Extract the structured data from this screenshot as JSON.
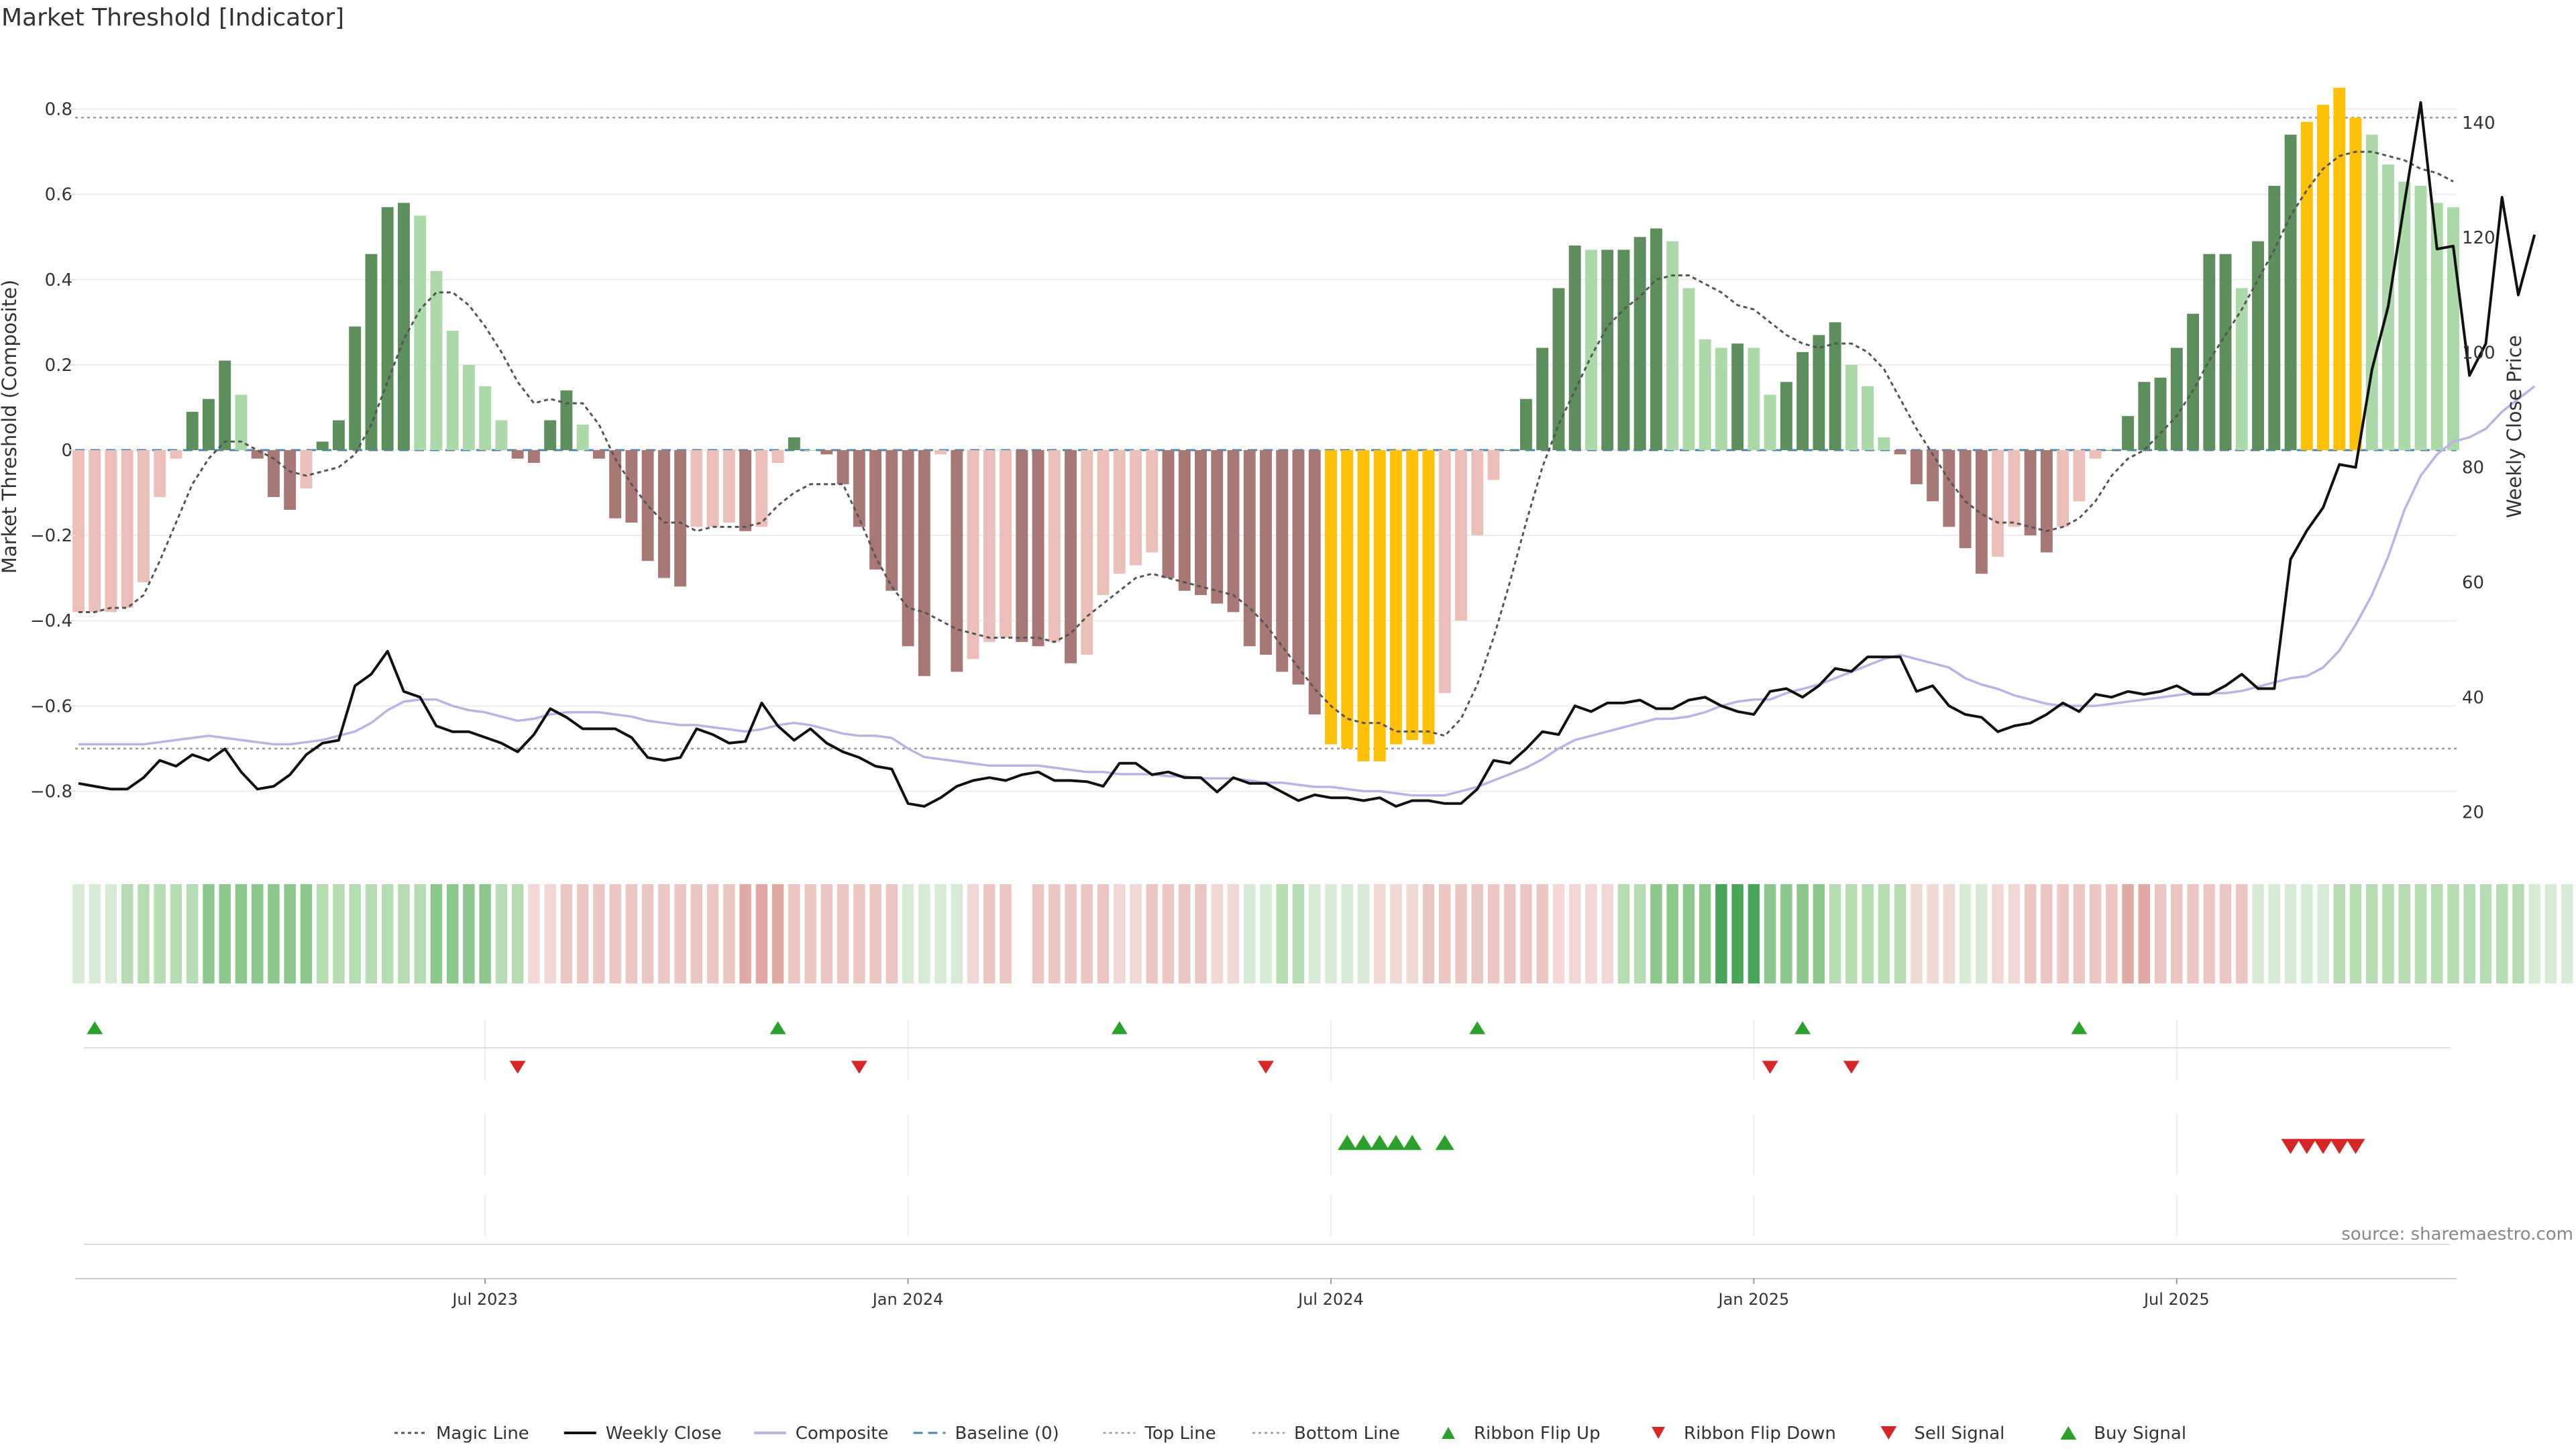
{
  "title": "Market Threshold [Indicator]",
  "source": "source: sharemaestro.com",
  "legend": {
    "placement": "bottom-center",
    "items": [
      {
        "key": "magic",
        "label": "Magic Line"
      },
      {
        "key": "close",
        "label": "Weekly Close"
      },
      {
        "key": "composite",
        "label": "Composite"
      },
      {
        "key": "baseline",
        "label": "Baseline (0)"
      },
      {
        "key": "top",
        "label": "Top Line"
      },
      {
        "key": "bottom",
        "label": "Bottom Line"
      },
      {
        "key": "flipup",
        "label": "Ribbon Flip Up"
      },
      {
        "key": "flipdown",
        "label": "Ribbon Flip Down"
      },
      {
        "key": "sell",
        "label": "Sell Signal"
      },
      {
        "key": "buy",
        "label": "Buy Signal"
      }
    ]
  },
  "colors": {
    "strong_pos": "#5c8f5c",
    "weak_pos": "#acd9a8",
    "strong_neg": "#a87874",
    "weak_neg": "#ecc0b8",
    "extreme": "#ffc107",
    "magic": "#555555",
    "close": "#111111",
    "composite": "#b9b3e6",
    "baseline": "#4a86b8",
    "ribbon_up": "#2ca02c",
    "ribbon_down": "#d62728",
    "buy": "#2ca02c",
    "sell": "#d62728"
  },
  "chart_data": {
    "type": "bar",
    "xaxis": {
      "start": "2023-01-06",
      "interval": "weekly",
      "ticks": [
        {
          "label": "Jul 2023",
          "index": 25
        },
        {
          "label": "Jan 2024",
          "index": 51
        },
        {
          "label": "Jul 2024",
          "index": 77
        },
        {
          "label": "Jan 2025",
          "index": 103
        },
        {
          "label": "Jul 2025",
          "index": 129
        }
      ]
    },
    "y_left": {
      "label": "Market Threshold (Composite)",
      "ylim": [
        -0.93,
        0.93
      ],
      "ticks": [
        -0.8,
        -0.6,
        -0.4,
        -0.2,
        0,
        0.2,
        0.4,
        0.6,
        0.8
      ]
    },
    "y_right": {
      "label": "Weekly Close Price",
      "ylim": [
        14,
        152
      ],
      "ticks": [
        20,
        40,
        60,
        80,
        100,
        120,
        140
      ]
    },
    "top_line": 0.78,
    "bottom_line": -0.7,
    "baseline": 0,
    "grid": true,
    "series": [
      {
        "name": "Market Threshold (Composite)",
        "kind": "bar",
        "values": [
          -0.38,
          -0.38,
          -0.38,
          -0.37,
          -0.31,
          -0.11,
          -0.02,
          0.09,
          0.12,
          0.21,
          0.13,
          -0.02,
          -0.11,
          -0.14,
          -0.09,
          0.02,
          0.07,
          0.29,
          0.46,
          0.57,
          0.58,
          0.55,
          0.42,
          0.28,
          0.2,
          0.15,
          0.07,
          -0.02,
          -0.03,
          0.07,
          0.14,
          0.06,
          -0.02,
          -0.16,
          -0.17,
          -0.26,
          -0.3,
          -0.32,
          -0.18,
          -0.18,
          -0.17,
          -0.19,
          -0.18,
          -0.03,
          0.03,
          0,
          -0.01,
          -0.08,
          -0.18,
          -0.28,
          -0.33,
          -0.46,
          -0.53,
          -0.01,
          -0.52,
          -0.49,
          -0.45,
          -0.44,
          -0.45,
          -0.46,
          -0.45,
          -0.5,
          -0.48,
          -0.34,
          -0.29,
          -0.27,
          -0.24,
          -0.3,
          -0.33,
          -0.34,
          -0.36,
          -0.38,
          -0.46,
          -0.48,
          -0.52,
          -0.55,
          -0.62,
          -0.69,
          -0.7,
          -0.73,
          -0.73,
          -0.69,
          -0.68,
          -0.69,
          -0.57,
          -0.4,
          -0.2,
          -0.07,
          0,
          0.12,
          0.24,
          0.38,
          0.48,
          0.47,
          0.47,
          0.47,
          0.5,
          0.52,
          0.49,
          0.38,
          0.26,
          0.24,
          0.25,
          0.24,
          0.13,
          0.16,
          0.23,
          0.27,
          0.3,
          0.2,
          0.15,
          0.03,
          -0.01,
          -0.08,
          -0.12,
          -0.18,
          -0.23,
          -0.29,
          -0.25,
          -0.18,
          -0.2,
          -0.24,
          -0.18,
          -0.12,
          -0.02,
          0,
          0.08,
          0.16,
          0.17,
          0.24,
          0.32,
          0.46,
          0.46,
          0.38,
          0.49,
          0.62,
          0.74,
          0.77,
          0.81,
          0.85,
          0.78,
          0.74,
          0.67,
          0.63,
          0.62,
          0.58,
          0.57
        ]
      },
      {
        "name": "Magic Line",
        "kind": "line",
        "values": [
          -0.38,
          -0.38,
          -0.37,
          -0.37,
          -0.34,
          -0.26,
          -0.17,
          -0.08,
          -0.02,
          0.02,
          0.02,
          0,
          -0.02,
          -0.05,
          -0.06,
          -0.05,
          -0.04,
          -0.01,
          0.06,
          0.16,
          0.26,
          0.33,
          0.37,
          0.37,
          0.34,
          0.29,
          0.23,
          0.16,
          0.11,
          0.12,
          0.11,
          0.11,
          0.06,
          -0.02,
          -0.08,
          -0.13,
          -0.17,
          -0.17,
          -0.19,
          -0.18,
          -0.18,
          -0.18,
          -0.17,
          -0.13,
          -0.1,
          -0.08,
          -0.08,
          -0.08,
          -0.16,
          -0.25,
          -0.32,
          -0.37,
          -0.38,
          -0.4,
          -0.42,
          -0.43,
          -0.44,
          -0.44,
          -0.44,
          -0.44,
          -0.45,
          -0.43,
          -0.39,
          -0.36,
          -0.33,
          -0.3,
          -0.29,
          -0.3,
          -0.31,
          -0.32,
          -0.33,
          -0.34,
          -0.37,
          -0.41,
          -0.46,
          -0.51,
          -0.56,
          -0.6,
          -0.63,
          -0.64,
          -0.64,
          -0.66,
          -0.66,
          -0.66,
          -0.67,
          -0.63,
          -0.55,
          -0.44,
          -0.31,
          -0.17,
          -0.04,
          0.06,
          0.14,
          0.22,
          0.29,
          0.33,
          0.36,
          0.4,
          0.41,
          0.41,
          0.39,
          0.37,
          0.34,
          0.33,
          0.3,
          0.27,
          0.25,
          0.24,
          0.25,
          0.25,
          0.23,
          0.19,
          0.12,
          0.05,
          -0.01,
          -0.07,
          -0.12,
          -0.15,
          -0.17,
          -0.17,
          -0.18,
          -0.19,
          -0.18,
          -0.16,
          -0.12,
          -0.06,
          -0.02,
          0,
          0.04,
          0.08,
          0.14,
          0.21,
          0.27,
          0.33,
          0.4,
          0.47,
          0.55,
          0.61,
          0.66,
          0.69,
          0.7,
          0.7,
          0.69,
          0.68,
          0.66,
          0.65,
          0.63
        ]
      },
      {
        "name": "Weekly Close",
        "kind": "line",
        "axis": "right",
        "values": [
          25,
          24.5,
          24,
          24,
          26,
          29,
          28,
          30,
          29,
          31,
          27,
          24,
          24.5,
          26.5,
          30,
          32,
          32.5,
          42,
          44,
          48,
          41,
          40,
          35,
          34,
          34,
          33,
          32,
          30.5,
          33.5,
          38,
          36.5,
          34.5,
          34.5,
          34.5,
          33,
          29.5,
          29,
          29.5,
          34.5,
          33.5,
          32,
          32.3,
          39,
          35,
          32.5,
          34.5,
          32,
          30.5,
          29.5,
          28,
          27.5,
          21.5,
          21,
          22.5,
          24.5,
          25.5,
          26,
          25.5,
          26.5,
          27,
          25.5,
          25.5,
          25.3,
          24.5,
          28.5,
          28.5,
          26.5,
          27,
          26,
          26,
          23.5,
          26,
          25,
          25,
          23.5,
          22,
          23,
          22.5,
          22.5,
          22,
          22.5,
          21,
          22,
          22,
          21.5,
          21.5,
          24,
          29,
          28.5,
          31,
          34,
          33.5,
          38.5,
          37.5,
          39,
          39,
          39.5,
          38,
          38,
          39.5,
          40,
          38.5,
          37.5,
          37,
          41,
          41.5,
          40,
          42,
          45,
          44.5,
          47,
          47,
          47,
          41,
          42,
          38.5,
          37,
          36.5,
          34,
          35,
          35.5,
          37,
          39,
          37.5,
          40.5,
          40,
          41,
          40.5,
          41,
          42,
          40.5,
          40.5,
          42,
          44,
          41.5,
          41.5,
          64,
          69,
          73,
          80.5,
          80,
          97,
          108,
          126,
          143.5,
          118,
          118.5,
          96,
          101.5,
          127,
          110,
          120.5
        ]
      },
      {
        "name": "Composite",
        "kind": "line",
        "values": [
          -0.69,
          -0.69,
          -0.69,
          -0.69,
          -0.69,
          -0.685,
          -0.68,
          -0.675,
          -0.67,
          -0.675,
          -0.68,
          -0.685,
          -0.69,
          -0.69,
          -0.685,
          -0.68,
          -0.67,
          -0.66,
          -0.64,
          -0.61,
          -0.59,
          -0.585,
          -0.585,
          -0.6,
          -0.61,
          -0.615,
          -0.625,
          -0.635,
          -0.63,
          -0.62,
          -0.615,
          -0.615,
          -0.615,
          -0.62,
          -0.625,
          -0.635,
          -0.64,
          -0.645,
          -0.645,
          -0.65,
          -0.655,
          -0.66,
          -0.655,
          -0.645,
          -0.64,
          -0.645,
          -0.655,
          -0.665,
          -0.67,
          -0.67,
          -0.675,
          -0.7,
          -0.72,
          -0.725,
          -0.73,
          -0.735,
          -0.74,
          -0.74,
          -0.74,
          -0.74,
          -0.745,
          -0.75,
          -0.755,
          -0.755,
          -0.76,
          -0.76,
          -0.76,
          -0.765,
          -0.765,
          -0.77,
          -0.77,
          -0.77,
          -0.775,
          -0.78,
          -0.78,
          -0.785,
          -0.79,
          -0.79,
          -0.795,
          -0.8,
          -0.8,
          -0.805,
          -0.81,
          -0.81,
          -0.81,
          -0.8,
          -0.79,
          -0.775,
          -0.76,
          -0.745,
          -0.725,
          -0.7,
          -0.68,
          -0.67,
          -0.66,
          -0.65,
          -0.64,
          -0.63,
          -0.63,
          -0.625,
          -0.615,
          -0.6,
          -0.59,
          -0.585,
          -0.585,
          -0.57,
          -0.56,
          -0.55,
          -0.535,
          -0.52,
          -0.505,
          -0.49,
          -0.48,
          -0.49,
          -0.5,
          -0.51,
          -0.535,
          -0.55,
          -0.56,
          -0.575,
          -0.585,
          -0.595,
          -0.6,
          -0.6,
          -0.6,
          -0.595,
          -0.59,
          -0.585,
          -0.58,
          -0.575,
          -0.57,
          -0.57,
          -0.57,
          -0.565,
          -0.555,
          -0.545,
          -0.535,
          -0.53,
          -0.51,
          -0.47,
          -0.41,
          -0.34,
          -0.25,
          -0.14,
          -0.06,
          -0.01,
          0.02,
          0.03,
          0.05,
          0.09,
          0.12,
          0.15
        ]
      }
    ],
    "ribbon": {
      "states": [
        1,
        1,
        1,
        2,
        2,
        2,
        2,
        2,
        3,
        3,
        3,
        3,
        3,
        3,
        3,
        2,
        2,
        2,
        2,
        2,
        2,
        2,
        3,
        3,
        3,
        3,
        2,
        2,
        -1,
        -1,
        -2,
        -2,
        -2,
        -2,
        -2,
        -2,
        -2,
        -2,
        -2,
        -2,
        -2,
        -3,
        -3,
        -3,
        -2,
        -2,
        -2,
        -2,
        -2,
        -2,
        -2,
        1,
        1,
        1,
        1,
        -1,
        -2,
        -2,
        0,
        -2,
        -2,
        -2,
        -2,
        -2,
        -1,
        -1,
        -2,
        -2,
        -2,
        -2,
        -1,
        -1,
        1,
        1,
        2,
        2,
        1,
        1,
        1,
        1,
        -1,
        -1,
        -1,
        -2,
        -2,
        -2,
        -2,
        -2,
        -2,
        -2,
        -2,
        -1,
        -1,
        -1,
        -1,
        2,
        2,
        3,
        3,
        3,
        3,
        4,
        4,
        4,
        3,
        3,
        3,
        3,
        2,
        2,
        2,
        2,
        2,
        -1,
        -1,
        -1,
        1,
        1,
        -1,
        -1,
        -2,
        -2,
        -2,
        -2,
        -2,
        -2,
        -3,
        -3,
        -2,
        -2,
        -2,
        -2,
        -2,
        -2,
        1,
        1,
        1,
        1,
        1,
        2,
        2,
        2,
        2,
        2,
        2,
        2,
        2,
        2,
        2,
        2,
        2,
        1,
        1,
        1,
        1
      ]
    },
    "ribbon_flip_up": [
      1,
      43,
      64,
      86,
      106,
      123
    ],
    "ribbon_flip_down": [
      27,
      48,
      73,
      104,
      109
    ],
    "buy_signal": [
      78,
      79,
      80,
      81,
      82,
      84
    ],
    "sell_signal": [
      136,
      137,
      138,
      139,
      140
    ]
  }
}
